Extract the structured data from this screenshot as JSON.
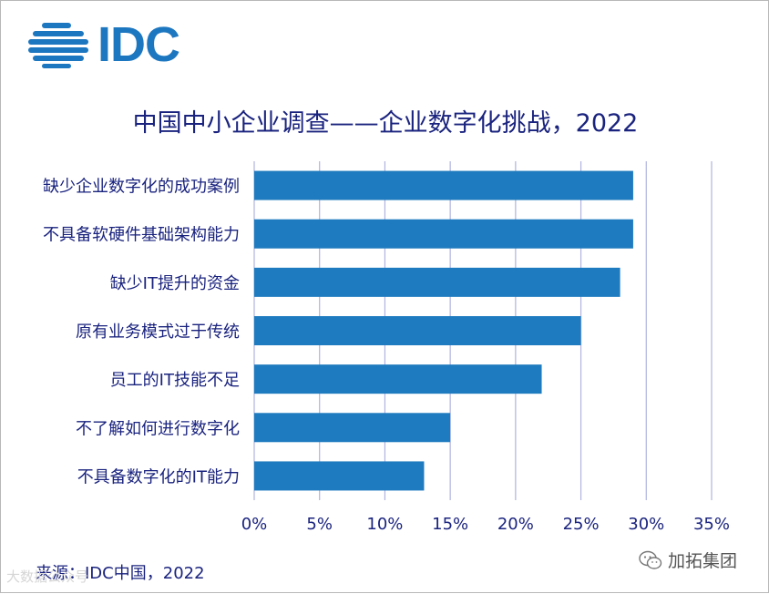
{
  "brand": {
    "logo_text": "IDC",
    "color": "#1d77c0"
  },
  "title": "中国中小企业调查——企业数字化挑战，2022",
  "source": "来源：IDC中国，2022",
  "watermark_left": "大数据公众号",
  "watermark_right": {
    "icon": "wechat-icon",
    "label": "加拓集团"
  },
  "colors": {
    "bar": "#1f7bbf",
    "text": "#1a237e",
    "grid": "#b0b3e0"
  },
  "chart_data": {
    "type": "bar",
    "orientation": "horizontal",
    "title": "中国中小企业调查——企业数字化挑战，2022",
    "categories": [
      "缺少企业数字化的成功案例",
      "不具备软硬件基础架构能力",
      "缺少IT提升的资金",
      "原有业务模式过于传统",
      "员工的IT技能不足",
      "不了解如何进行数字化",
      "不具备数字化的IT能力"
    ],
    "values": [
      29,
      29,
      28,
      25,
      22,
      15,
      13
    ],
    "unit": "%",
    "xlim": [
      0,
      35
    ],
    "ticks": [
      "0%",
      "5%",
      "10%",
      "15%",
      "20%",
      "25%",
      "30%",
      "35%"
    ],
    "tick_values": [
      0,
      5,
      10,
      15,
      20,
      25,
      30,
      35
    ],
    "grid": true,
    "legend": "none"
  }
}
